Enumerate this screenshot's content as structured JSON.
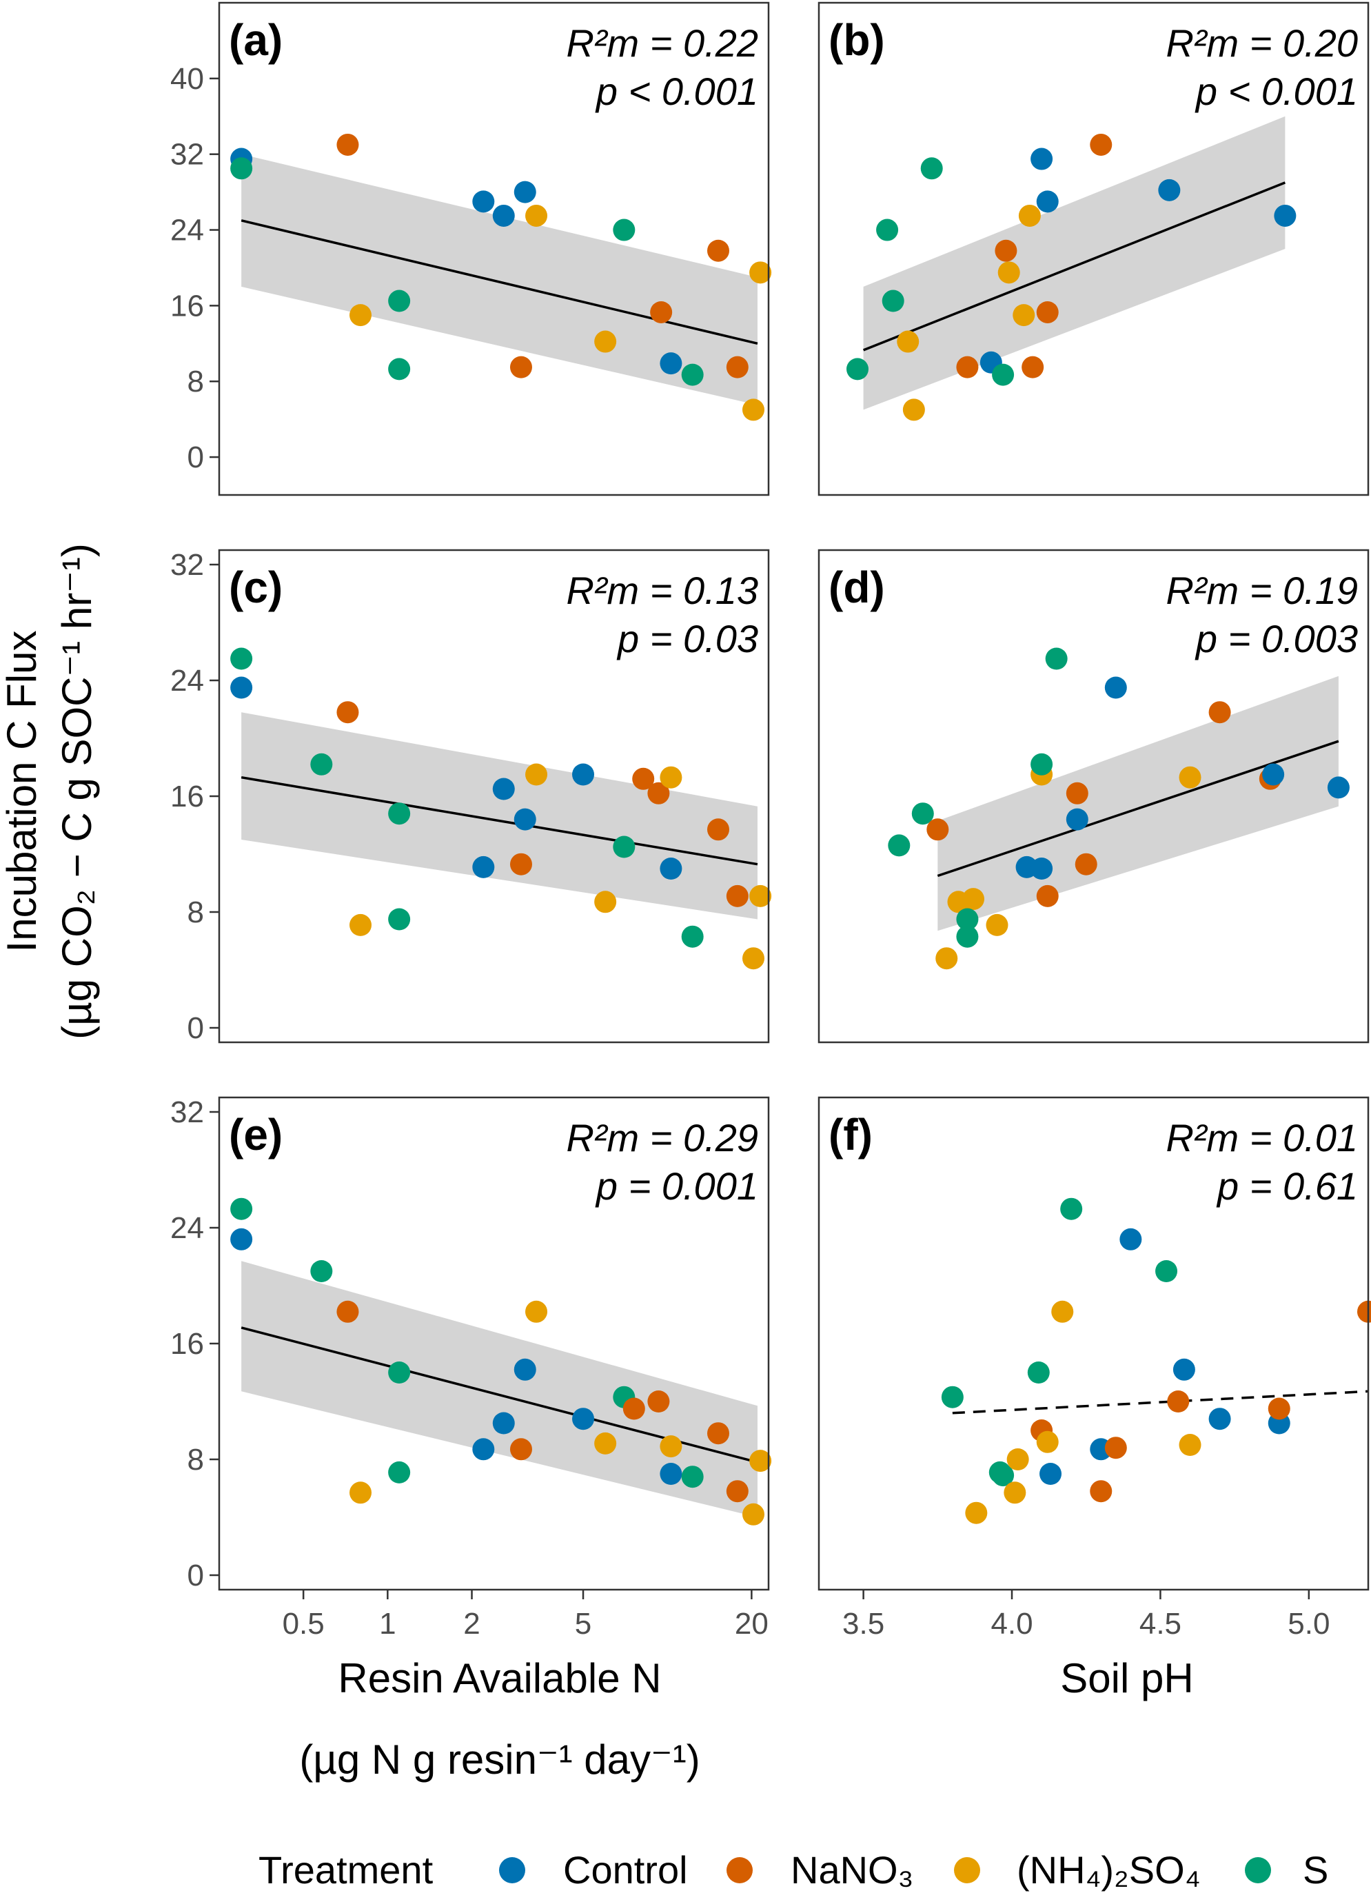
{
  "figure": {
    "y_axis_title_line1": "Incubation C Flux",
    "y_axis_title_line2": "(µg CO₂ − C g SOC⁻¹ hr⁻¹)",
    "x_axis_left_title_line1": "Resin Available N",
    "x_axis_left_title_line2": "(µg N g resin⁻¹ day⁻¹)",
    "x_axis_right_title": "Soil pH",
    "legend_title": "Treatment",
    "legend": [
      {
        "label": "Control",
        "color": "#0072B2"
      },
      {
        "label": "NaNO₃",
        "color": "#D55E00"
      },
      {
        "label": "(NH₄)₂SO₄",
        "color": "#E69F00"
      },
      {
        "label": "S",
        "color": "#009E73"
      }
    ],
    "x_left_ticks": [
      "0.5",
      "1",
      "2",
      "5",
      "20"
    ],
    "x_right_ticks": [
      "3.5",
      "4.0",
      "4.5",
      "5.0"
    ]
  },
  "chart_data": [
    {
      "panel": "(a)",
      "type": "scatter",
      "x_scale": "log",
      "xlim": [
        0.25,
        23
      ],
      "ylim": [
        -4,
        48
      ],
      "yticks": [
        0,
        8,
        16,
        24,
        32,
        40
      ],
      "stat_r2": "R²m = 0.22",
      "stat_p": "p < 0.001",
      "fit": {
        "x": [
          0.3,
          21
        ],
        "y": [
          25,
          12
        ],
        "ci_lower": [
          18,
          5.5
        ],
        "ci_upper": [
          32,
          19
        ],
        "dashed": false
      },
      "points": [
        {
          "x": 0.3,
          "y": 31.5,
          "group": "Control"
        },
        {
          "x": 0.3,
          "y": 30.5,
          "group": "S"
        },
        {
          "x": 0.72,
          "y": 33,
          "group": "NaNO₃"
        },
        {
          "x": 0.8,
          "y": 15,
          "group": "(NH₄)₂SO₄"
        },
        {
          "x": 1.1,
          "y": 16.5,
          "group": "S"
        },
        {
          "x": 1.1,
          "y": 9.3,
          "group": "S"
        },
        {
          "x": 2.2,
          "y": 27,
          "group": "Control"
        },
        {
          "x": 2.6,
          "y": 25.5,
          "group": "Control"
        },
        {
          "x": 3.1,
          "y": 28,
          "group": "Control"
        },
        {
          "x": 3.4,
          "y": 25.5,
          "group": "(NH₄)₂SO₄"
        },
        {
          "x": 3.0,
          "y": 9.5,
          "group": "NaNO₃"
        },
        {
          "x": 6.0,
          "y": 12.2,
          "group": "(NH₄)₂SO₄"
        },
        {
          "x": 7.0,
          "y": 24,
          "group": "S"
        },
        {
          "x": 9.5,
          "y": 15.3,
          "group": "NaNO₃"
        },
        {
          "x": 10.3,
          "y": 9.9,
          "group": "Control"
        },
        {
          "x": 12.3,
          "y": 8.7,
          "group": "S"
        },
        {
          "x": 15.2,
          "y": 21.8,
          "group": "NaNO₃"
        },
        {
          "x": 17.8,
          "y": 9.5,
          "group": "NaNO₃"
        },
        {
          "x": 20.3,
          "y": 5,
          "group": "(NH₄)₂SO₄"
        },
        {
          "x": 21.5,
          "y": 19.5,
          "group": "(NH₄)₂SO₄"
        }
      ]
    },
    {
      "panel": "(b)",
      "type": "scatter",
      "x_scale": "linear",
      "xlim": [
        3.35,
        5.2
      ],
      "ylim": [
        -4,
        48
      ],
      "yticks": [
        0,
        8,
        16,
        24,
        32,
        40
      ],
      "stat_r2": "R²m = 0.20",
      "stat_p": "p < 0.001",
      "fit": {
        "x": [
          3.5,
          4.92
        ],
        "y": [
          11.3,
          29
        ],
        "ci_lower": [
          5,
          22
        ],
        "ci_upper": [
          18,
          36
        ],
        "dashed": false
      },
      "points": [
        {
          "x": 3.48,
          "y": 9.3,
          "group": "S"
        },
        {
          "x": 3.58,
          "y": 24,
          "group": "S"
        },
        {
          "x": 3.6,
          "y": 16.5,
          "group": "S"
        },
        {
          "x": 3.65,
          "y": 12.2,
          "group": "(NH₄)₂SO₄"
        },
        {
          "x": 3.67,
          "y": 5,
          "group": "(NH₄)₂SO₄"
        },
        {
          "x": 3.73,
          "y": 30.5,
          "group": "S"
        },
        {
          "x": 3.85,
          "y": 9.5,
          "group": "NaNO₃"
        },
        {
          "x": 3.93,
          "y": 10,
          "group": "Control"
        },
        {
          "x": 3.97,
          "y": 8.7,
          "group": "S"
        },
        {
          "x": 3.98,
          "y": 21.8,
          "group": "NaNO₃"
        },
        {
          "x": 3.99,
          "y": 19.5,
          "group": "(NH₄)₂SO₄"
        },
        {
          "x": 4.04,
          "y": 15,
          "group": "(NH₄)₂SO₄"
        },
        {
          "x": 4.06,
          "y": 25.5,
          "group": "(NH₄)₂SO₄"
        },
        {
          "x": 4.07,
          "y": 9.5,
          "group": "NaNO₃"
        },
        {
          "x": 4.1,
          "y": 31.5,
          "group": "Control"
        },
        {
          "x": 4.12,
          "y": 27,
          "group": "Control"
        },
        {
          "x": 4.12,
          "y": 15.3,
          "group": "NaNO₃"
        },
        {
          "x": 4.3,
          "y": 33,
          "group": "NaNO₃"
        },
        {
          "x": 4.53,
          "y": 28.2,
          "group": "Control"
        },
        {
          "x": 4.92,
          "y": 25.5,
          "group": "Control"
        }
      ]
    },
    {
      "panel": "(c)",
      "type": "scatter",
      "x_scale": "log",
      "xlim": [
        0.25,
        23
      ],
      "ylim": [
        -1,
        33
      ],
      "yticks": [
        0,
        8,
        16,
        24,
        32
      ],
      "stat_r2": "R²m = 0.13",
      "stat_p": "p = 0.03",
      "fit": {
        "x": [
          0.3,
          21
        ],
        "y": [
          17.3,
          11.3
        ],
        "ci_lower": [
          13,
          7.5
        ],
        "ci_upper": [
          21.8,
          15.3
        ],
        "dashed": false
      },
      "points": [
        {
          "x": 0.3,
          "y": 25.5,
          "group": "S"
        },
        {
          "x": 0.3,
          "y": 23.5,
          "group": "Control"
        },
        {
          "x": 0.72,
          "y": 21.8,
          "group": "NaNO₃"
        },
        {
          "x": 0.58,
          "y": 18.2,
          "group": "S"
        },
        {
          "x": 0.8,
          "y": 7.1,
          "group": "(NH₄)₂SO₄"
        },
        {
          "x": 1.1,
          "y": 14.8,
          "group": "S"
        },
        {
          "x": 1.1,
          "y": 7.5,
          "group": "S"
        },
        {
          "x": 2.2,
          "y": 11.1,
          "group": "Control"
        },
        {
          "x": 2.6,
          "y": 16.5,
          "group": "Control"
        },
        {
          "x": 3.1,
          "y": 14.4,
          "group": "Control"
        },
        {
          "x": 3.0,
          "y": 11.3,
          "group": "NaNO₃"
        },
        {
          "x": 3.4,
          "y": 17.5,
          "group": "(NH₄)₂SO₄"
        },
        {
          "x": 5.0,
          "y": 17.5,
          "group": "Control"
        },
        {
          "x": 6.0,
          "y": 8.7,
          "group": "(NH₄)₂SO₄"
        },
        {
          "x": 7.0,
          "y": 12.5,
          "group": "S"
        },
        {
          "x": 8.2,
          "y": 17.2,
          "group": "NaNO₃"
        },
        {
          "x": 9.3,
          "y": 16.2,
          "group": "NaNO₃"
        },
        {
          "x": 10.3,
          "y": 17.3,
          "group": "(NH₄)₂SO₄"
        },
        {
          "x": 10.3,
          "y": 11,
          "group": "Control"
        },
        {
          "x": 12.3,
          "y": 6.3,
          "group": "S"
        },
        {
          "x": 15.2,
          "y": 13.7,
          "group": "NaNO₃"
        },
        {
          "x": 17.8,
          "y": 9.1,
          "group": "NaNO₃"
        },
        {
          "x": 20.3,
          "y": 4.8,
          "group": "(NH₄)₂SO₄"
        },
        {
          "x": 21.5,
          "y": 9.1,
          "group": "(NH₄)₂SO₄"
        }
      ]
    },
    {
      "panel": "(d)",
      "type": "scatter",
      "x_scale": "linear",
      "xlim": [
        3.35,
        5.2
      ],
      "ylim": [
        -1,
        33
      ],
      "yticks": [
        0,
        8,
        16,
        24,
        32
      ],
      "stat_r2": "R²m = 0.19",
      "stat_p": "p = 0.003",
      "fit": {
        "x": [
          3.75,
          5.1
        ],
        "y": [
          10.5,
          19.8
        ],
        "ci_lower": [
          6.7,
          15.3
        ],
        "ci_upper": [
          14.3,
          24.3
        ],
        "dashed": false
      },
      "points": [
        {
          "x": 3.62,
          "y": 12.6,
          "group": "S"
        },
        {
          "x": 3.7,
          "y": 14.8,
          "group": "S"
        },
        {
          "x": 3.75,
          "y": 13.7,
          "group": "NaNO₃"
        },
        {
          "x": 3.78,
          "y": 4.8,
          "group": "(NH₄)₂SO₄"
        },
        {
          "x": 3.82,
          "y": 8.7,
          "group": "(NH₄)₂SO₄"
        },
        {
          "x": 3.87,
          "y": 8.9,
          "group": "(NH₄)₂SO₄"
        },
        {
          "x": 3.85,
          "y": 7.5,
          "group": "S"
        },
        {
          "x": 3.85,
          "y": 6.3,
          "group": "S"
        },
        {
          "x": 3.95,
          "y": 7.1,
          "group": "(NH₄)₂SO₄"
        },
        {
          "x": 4.05,
          "y": 11.1,
          "group": "Control"
        },
        {
          "x": 4.1,
          "y": 11,
          "group": "Control"
        },
        {
          "x": 4.1,
          "y": 17.5,
          "group": "(NH₄)₂SO₄"
        },
        {
          "x": 4.1,
          "y": 18.2,
          "group": "S"
        },
        {
          "x": 4.12,
          "y": 9.1,
          "group": "NaNO₃"
        },
        {
          "x": 4.15,
          "y": 25.5,
          "group": "S"
        },
        {
          "x": 4.22,
          "y": 16.2,
          "group": "NaNO₃"
        },
        {
          "x": 4.22,
          "y": 14.4,
          "group": "Control"
        },
        {
          "x": 4.25,
          "y": 11.3,
          "group": "NaNO₃"
        },
        {
          "x": 4.35,
          "y": 23.5,
          "group": "Control"
        },
        {
          "x": 4.6,
          "y": 17.3,
          "group": "(NH₄)₂SO₄"
        },
        {
          "x": 4.7,
          "y": 21.8,
          "group": "NaNO₃"
        },
        {
          "x": 4.87,
          "y": 17.2,
          "group": "NaNO₃"
        },
        {
          "x": 4.88,
          "y": 17.5,
          "group": "Control"
        },
        {
          "x": 5.1,
          "y": 16.6,
          "group": "Control"
        }
      ]
    },
    {
      "panel": "(e)",
      "type": "scatter",
      "x_scale": "log",
      "xlim": [
        0.25,
        23
      ],
      "ylim": [
        -1,
        33
      ],
      "yticks": [
        0,
        8,
        16,
        24,
        32
      ],
      "stat_r2": "R²m = 0.29",
      "stat_p": "p = 0.001",
      "fit": {
        "x": [
          0.3,
          21
        ],
        "y": [
          17.1,
          7.8
        ],
        "ci_lower": [
          12.7,
          4
        ],
        "ci_upper": [
          21.7,
          11.7
        ],
        "dashed": false
      },
      "points": [
        {
          "x": 0.3,
          "y": 25.3,
          "group": "S"
        },
        {
          "x": 0.3,
          "y": 23.2,
          "group": "Control"
        },
        {
          "x": 0.58,
          "y": 21,
          "group": "S"
        },
        {
          "x": 0.72,
          "y": 18.2,
          "group": "NaNO₃"
        },
        {
          "x": 0.8,
          "y": 5.7,
          "group": "(NH₄)₂SO₄"
        },
        {
          "x": 1.1,
          "y": 14,
          "group": "S"
        },
        {
          "x": 1.1,
          "y": 7.1,
          "group": "S"
        },
        {
          "x": 2.2,
          "y": 8.7,
          "group": "Control"
        },
        {
          "x": 2.6,
          "y": 10.5,
          "group": "Control"
        },
        {
          "x": 3.0,
          "y": 8.7,
          "group": "NaNO₃"
        },
        {
          "x": 3.1,
          "y": 14.2,
          "group": "Control"
        },
        {
          "x": 3.4,
          "y": 18.2,
          "group": "(NH₄)₂SO₄"
        },
        {
          "x": 5.0,
          "y": 10.8,
          "group": "Control"
        },
        {
          "x": 6.0,
          "y": 9.1,
          "group": "(NH₄)₂SO₄"
        },
        {
          "x": 7.0,
          "y": 12.3,
          "group": "S"
        },
        {
          "x": 7.6,
          "y": 11.5,
          "group": "NaNO₃"
        },
        {
          "x": 9.3,
          "y": 12,
          "group": "NaNO₃"
        },
        {
          "x": 10.3,
          "y": 8.9,
          "group": "(NH₄)₂SO₄"
        },
        {
          "x": 10.3,
          "y": 7,
          "group": "Control"
        },
        {
          "x": 12.3,
          "y": 6.8,
          "group": "S"
        },
        {
          "x": 15.2,
          "y": 9.8,
          "group": "NaNO₃"
        },
        {
          "x": 17.8,
          "y": 5.8,
          "group": "NaNO₃"
        },
        {
          "x": 20.3,
          "y": 4.2,
          "group": "(NH₄)₂SO₄"
        },
        {
          "x": 21.5,
          "y": 7.9,
          "group": "(NH₄)₂SO₄"
        }
      ]
    },
    {
      "panel": "(f)",
      "type": "scatter",
      "x_scale": "linear",
      "xlim": [
        3.35,
        5.2
      ],
      "ylim": [
        -1,
        33
      ],
      "yticks": [
        0,
        8,
        16,
        24,
        32
      ],
      "stat_r2": "R²m = 0.01",
      "stat_p": "p = 0.61",
      "fit": {
        "x": [
          3.8,
          5.2
        ],
        "y": [
          11.2,
          12.7
        ],
        "ci_lower": null,
        "ci_upper": null,
        "dashed": true
      },
      "points": [
        {
          "x": 3.8,
          "y": 12.3,
          "group": "S"
        },
        {
          "x": 3.88,
          "y": 4.3,
          "group": "(NH₄)₂SO₄"
        },
        {
          "x": 3.96,
          "y": 7.1,
          "group": "S"
        },
        {
          "x": 3.97,
          "y": 6.9,
          "group": "S"
        },
        {
          "x": 4.01,
          "y": 5.7,
          "group": "(NH₄)₂SO₄"
        },
        {
          "x": 4.02,
          "y": 8,
          "group": "(NH₄)₂SO₄"
        },
        {
          "x": 4.09,
          "y": 14,
          "group": "S"
        },
        {
          "x": 4.1,
          "y": 10,
          "group": "NaNO₃"
        },
        {
          "x": 4.12,
          "y": 9.2,
          "group": "(NH₄)₂SO₄"
        },
        {
          "x": 4.13,
          "y": 7,
          "group": "Control"
        },
        {
          "x": 4.17,
          "y": 18.2,
          "group": "(NH₄)₂SO₄"
        },
        {
          "x": 4.2,
          "y": 25.3,
          "group": "S"
        },
        {
          "x": 4.3,
          "y": 8.7,
          "group": "Control"
        },
        {
          "x": 4.3,
          "y": 5.8,
          "group": "NaNO₃"
        },
        {
          "x": 4.35,
          "y": 8.8,
          "group": "NaNO₃"
        },
        {
          "x": 4.4,
          "y": 23.2,
          "group": "Control"
        },
        {
          "x": 4.52,
          "y": 21,
          "group": "S"
        },
        {
          "x": 4.56,
          "y": 12,
          "group": "NaNO₃"
        },
        {
          "x": 4.58,
          "y": 14.2,
          "group": "Control"
        },
        {
          "x": 4.6,
          "y": 9,
          "group": "(NH₄)₂SO₄"
        },
        {
          "x": 4.7,
          "y": 10.8,
          "group": "Control"
        },
        {
          "x": 4.9,
          "y": 10.5,
          "group": "Control"
        },
        {
          "x": 4.9,
          "y": 11.5,
          "group": "NaNO₃"
        },
        {
          "x": 5.2,
          "y": 18.2,
          "group": "NaNO₃"
        }
      ]
    }
  ]
}
